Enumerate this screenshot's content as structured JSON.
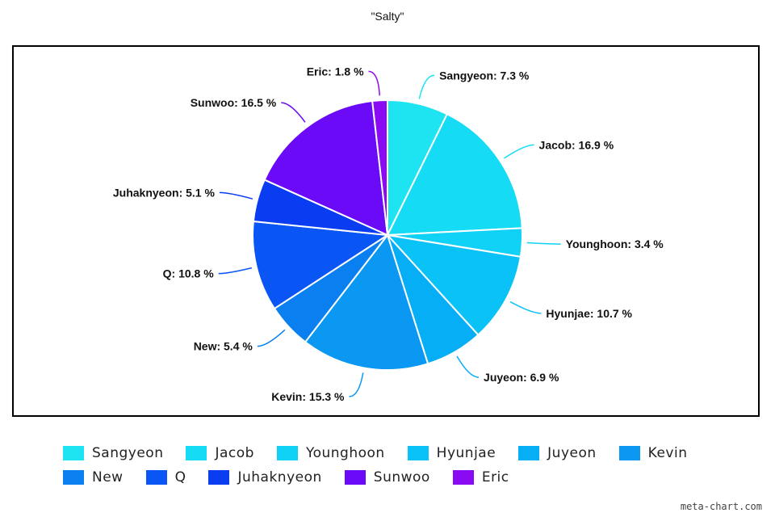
{
  "chart_data": {
    "type": "pie",
    "title": "\"Salty\"",
    "slices": [
      {
        "name": "Sangyeon",
        "value": 7.3,
        "label": "Sangyeon: 7.3 %",
        "color": "#1ee4f2"
      },
      {
        "name": "Jacob",
        "value": 16.9,
        "label": "Jacob: 16.9 %",
        "color": "#15dcf4"
      },
      {
        "name": "Younghoon",
        "value": 3.4,
        "label": "Younghoon: 3.4 %",
        "color": "#0fd2f6"
      },
      {
        "name": "Hyunjae",
        "value": 10.7,
        "label": "Hyunjae: 10.7 %",
        "color": "#0ac2f6"
      },
      {
        "name": "Juyeon",
        "value": 6.9,
        "label": "Juyeon: 6.9 %",
        "color": "#06aef5"
      },
      {
        "name": "Kevin",
        "value": 15.3,
        "label": "Kevin: 15.3 %",
        "color": "#0a98f2"
      },
      {
        "name": "New",
        "value": 5.4,
        "label": "New: 5.4 %",
        "color": "#0a80f0"
      },
      {
        "name": "Q",
        "value": 10.8,
        "label": "Q: 10.8 %",
        "color": "#0a56f4"
      },
      {
        "name": "Juhaknyeon",
        "value": 5.1,
        "label": "Juhaknyeon: 5.1 %",
        "color": "#0a3cf2"
      },
      {
        "name": "Sunwoo",
        "value": 16.5,
        "label": "Sunwoo: 16.5 %",
        "color": "#6a0af6"
      },
      {
        "name": "Eric",
        "value": 1.8,
        "label": "Eric: 1.8 %",
        "color": "#8a0af4"
      }
    ],
    "legend_position": "bottom"
  },
  "credit": "meta-chart.com"
}
